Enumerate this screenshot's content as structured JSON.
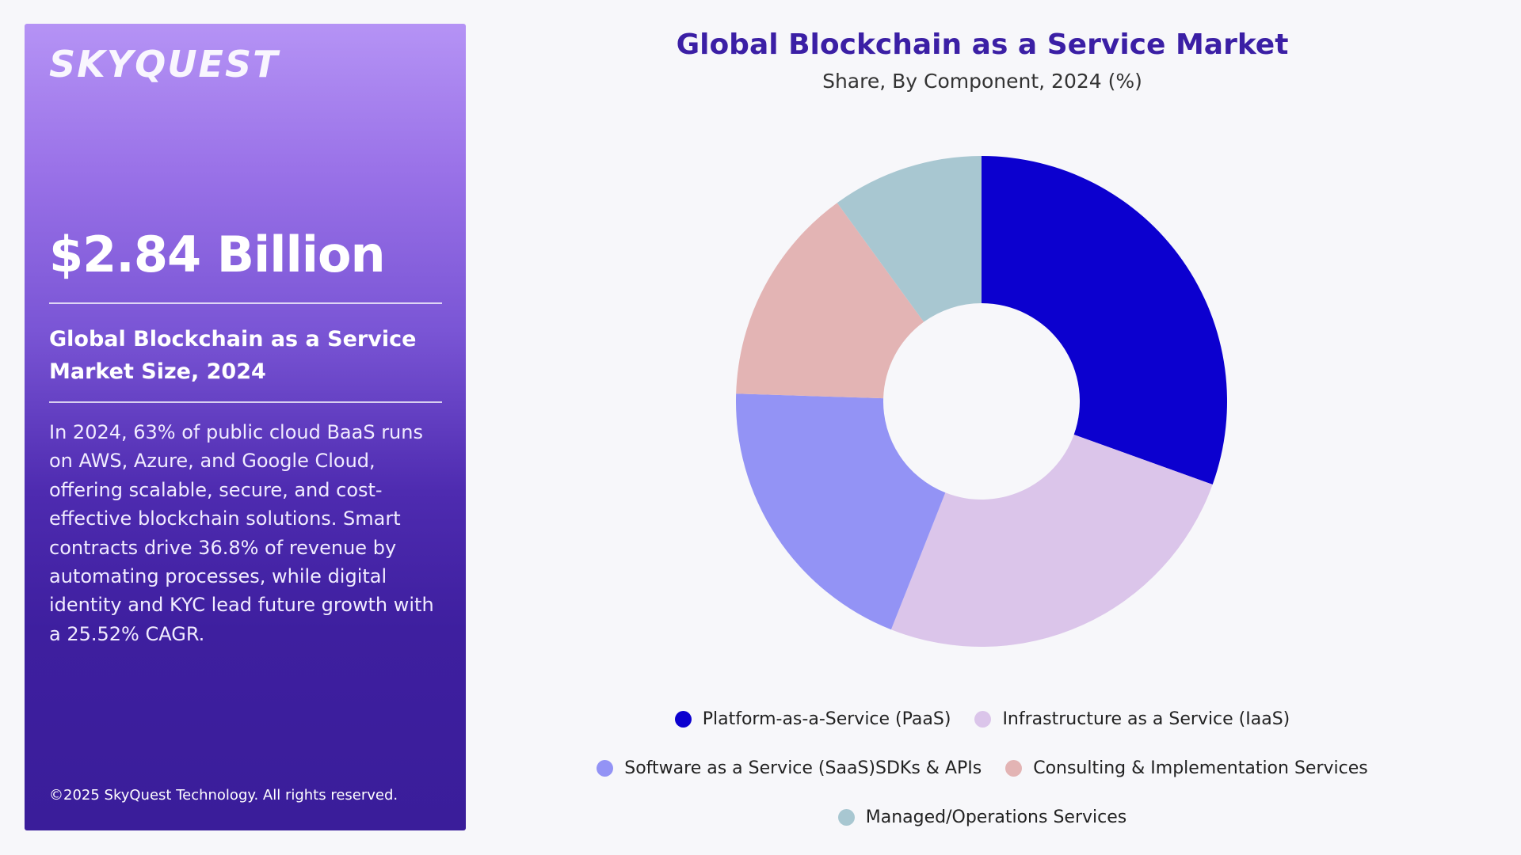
{
  "panel": {
    "logo": "SKYQUEST",
    "value": "$2.84 Billion",
    "size_label": "Global Blockchain as a Service Market Size, 2024",
    "description": "In 2024, 63% of public cloud BaaS runs on AWS, Azure, and Google Cloud, offering scalable, secure, and cost-effective blockchain solutions. Smart contracts drive 36.8% of revenue by automating processes, while digital identity and KYC lead future growth with a 25.52% CAGR.",
    "copyright": "©2025 SkyQuest Technology. All rights reserved."
  },
  "chart_data": {
    "type": "pie",
    "title": "Global Blockchain as a Service Market",
    "subtitle": "Share, By Component, 2024 (%)",
    "categories": [
      "Platform-as-a-Service (PaaS)",
      "Infrastructure as a Service (IaaS)",
      "Software as a Service (SaaS)SDKs & APIs",
      "Consulting & Implementation Services",
      "Managed/Operations Services"
    ],
    "values": [
      30.5,
      25.5,
      19.5,
      14.5,
      10.0
    ],
    "colors": [
      "#0c00cf",
      "#dbc5ea",
      "#9393f5",
      "#e3b4b4",
      "#a8c7d1"
    ],
    "donut": true,
    "legend": "bottom"
  }
}
